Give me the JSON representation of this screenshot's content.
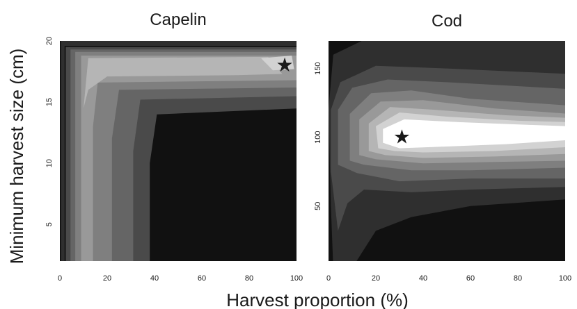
{
  "y_axis_label": "Minimum   harvest  size (cm)",
  "x_axis_label": "Harvest proportion (%)",
  "optimum_marker": {
    "glyph": "★",
    "color": "#000000"
  },
  "palette": [
    "#111111",
    "#2f2f2f",
    "#4a4a4a",
    "#656565",
    "#7f7f7f",
    "#999999",
    "#b5b5b5",
    "#d2d2d2",
    "#ffffff"
  ],
  "chart_data": [
    {
      "type": "heatmap",
      "title": "Capelin",
      "xlim": [
        0,
        100
      ],
      "ylim": [
        2,
        20
      ],
      "xticks": [
        0,
        20,
        40,
        60,
        80,
        100
      ],
      "yticks": [
        5,
        10,
        15,
        20
      ],
      "grid": false,
      "optimum": {
        "x": 95,
        "y": 18
      },
      "contour_bands": [
        {
          "level": 1,
          "boundary": [
            [
              0.5,
              2
            ],
            [
              0.5,
              20.1
            ],
            [
              102,
              20.1
            ],
            [
              102,
              19.6
            ],
            [
              2,
              19.6
            ],
            [
              2,
              2
            ]
          ]
        },
        {
          "level": 2,
          "boundary": [
            [
              2.5,
              2
            ],
            [
              2.5,
              19.5
            ],
            [
              102,
              19.5
            ],
            [
              102,
              14.5
            ],
            [
              41,
              14
            ],
            [
              38,
              10
            ],
            [
              38,
              2
            ]
          ]
        },
        {
          "level": 3,
          "boundary": [
            [
              4.5,
              2
            ],
            [
              4.5,
              19.3
            ],
            [
              102,
              19.3
            ],
            [
              102,
              15.5
            ],
            [
              34,
              15.2
            ],
            [
              31,
              11
            ],
            [
              31,
              2
            ]
          ]
        },
        {
          "level": 4,
          "boundary": [
            [
              6.5,
              2
            ],
            [
              6.5,
              19.1
            ],
            [
              102,
              19.1
            ],
            [
              102,
              16.2
            ],
            [
              25,
              16
            ],
            [
              22,
              12
            ],
            [
              22,
              2
            ]
          ]
        },
        {
          "level": 5,
          "boundary": [
            [
              9,
              2
            ],
            [
              9,
              18.8
            ],
            [
              102,
              18.8
            ],
            [
              102,
              16.8
            ],
            [
              16,
              16.6
            ],
            [
              14,
              13
            ],
            [
              14,
              2
            ]
          ]
        },
        {
          "level": 6,
          "boundary": [
            [
              10,
              14.5
            ],
            [
              12,
              18.6
            ],
            [
              88,
              18.7
            ],
            [
              94,
              17.3
            ],
            [
              75,
              17.2
            ],
            [
              20,
              17.1
            ],
            [
              12,
              16
            ]
          ]
        },
        {
          "level": 7,
          "boundary": [
            [
              85,
              18.6
            ],
            [
              98,
              18.8
            ],
            [
              99,
              17.7
            ],
            [
              90,
              17.6
            ]
          ]
        }
      ]
    },
    {
      "type": "heatmap",
      "title": "Cod",
      "xlim": [
        0,
        100
      ],
      "ylim": [
        10,
        170
      ],
      "xticks": [
        0,
        20,
        40,
        60,
        80,
        100
      ],
      "yticks": [
        50,
        100,
        150
      ],
      "grid": false,
      "optimum": {
        "x": 31,
        "y": 100
      },
      "contour_bands": [
        {
          "level": 1,
          "boundary": [
            [
              2,
              5
            ],
            [
              1,
              50
            ],
            [
              0,
              120
            ],
            [
              2,
              160
            ],
            [
              20,
              175
            ],
            [
              60,
              175
            ],
            [
              102,
              172
            ],
            [
              102,
              55
            ],
            [
              60,
              50
            ],
            [
              35,
              42
            ],
            [
              20,
              32
            ],
            [
              10,
              5
            ]
          ]
        },
        {
          "level": 2,
          "boundary": [
            [
              4,
              32
            ],
            [
              1,
              75
            ],
            [
              1,
              120
            ],
            [
              5,
              140
            ],
            [
              20,
              152
            ],
            [
              50,
              150
            ],
            [
              102,
              146
            ],
            [
              102,
              64
            ],
            [
              60,
              62
            ],
            [
              35,
              60
            ],
            [
              15,
              62
            ],
            [
              8,
              52
            ]
          ]
        },
        {
          "level": 3,
          "boundary": [
            [
              4,
              80
            ],
            [
              4,
              120
            ],
            [
              10,
              136
            ],
            [
              25,
              142
            ],
            [
              50,
              140
            ],
            [
              102,
              135
            ],
            [
              102,
              70
            ],
            [
              60,
              70
            ],
            [
              30,
              68
            ],
            [
              12,
              74
            ]
          ]
        },
        {
          "level": 4,
          "boundary": [
            [
              9,
              83
            ],
            [
              9,
              117
            ],
            [
              18,
              132
            ],
            [
              35,
              134
            ],
            [
              60,
              128
            ],
            [
              102,
              123
            ],
            [
              102,
              78
            ],
            [
              60,
              76
            ],
            [
              35,
              76
            ],
            [
              15,
              80
            ]
          ]
        },
        {
          "level": 5,
          "boundary": [
            [
              13,
              87
            ],
            [
              13,
              113
            ],
            [
              22,
              126
            ],
            [
              40,
              127
            ],
            [
              70,
              121
            ],
            [
              102,
              117
            ],
            [
              102,
              83
            ],
            [
              70,
              82
            ],
            [
              40,
              81
            ],
            [
              20,
              84
            ]
          ]
        },
        {
          "level": 6,
          "boundary": [
            [
              17,
              90
            ],
            [
              17,
              110
            ],
            [
              26,
              122
            ],
            [
              45,
              120
            ],
            [
              75,
              116
            ],
            [
              102,
              114
            ],
            [
              102,
              88
            ],
            [
              70,
              86
            ],
            [
              40,
              85
            ],
            [
              24,
              87
            ]
          ]
        },
        {
          "level": 7,
          "boundary": [
            [
              21,
              92
            ],
            [
              20,
              108
            ],
            [
              30,
              118
            ],
            [
              50,
              115
            ],
            [
              80,
              112
            ],
            [
              102,
              111
            ],
            [
              102,
              93
            ],
            [
              70,
              90
            ],
            [
              40,
              89
            ],
            [
              28,
              90
            ]
          ]
        },
        {
          "level": 8,
          "boundary": [
            [
              23,
              96
            ],
            [
              23,
              106
            ],
            [
              32,
              113
            ],
            [
              55,
              111
            ],
            [
              85,
              109
            ],
            [
              102,
              108
            ],
            [
              102,
              98
            ],
            [
              75,
              95
            ],
            [
              45,
              93
            ],
            [
              30,
              92
            ]
          ]
        }
      ]
    }
  ]
}
